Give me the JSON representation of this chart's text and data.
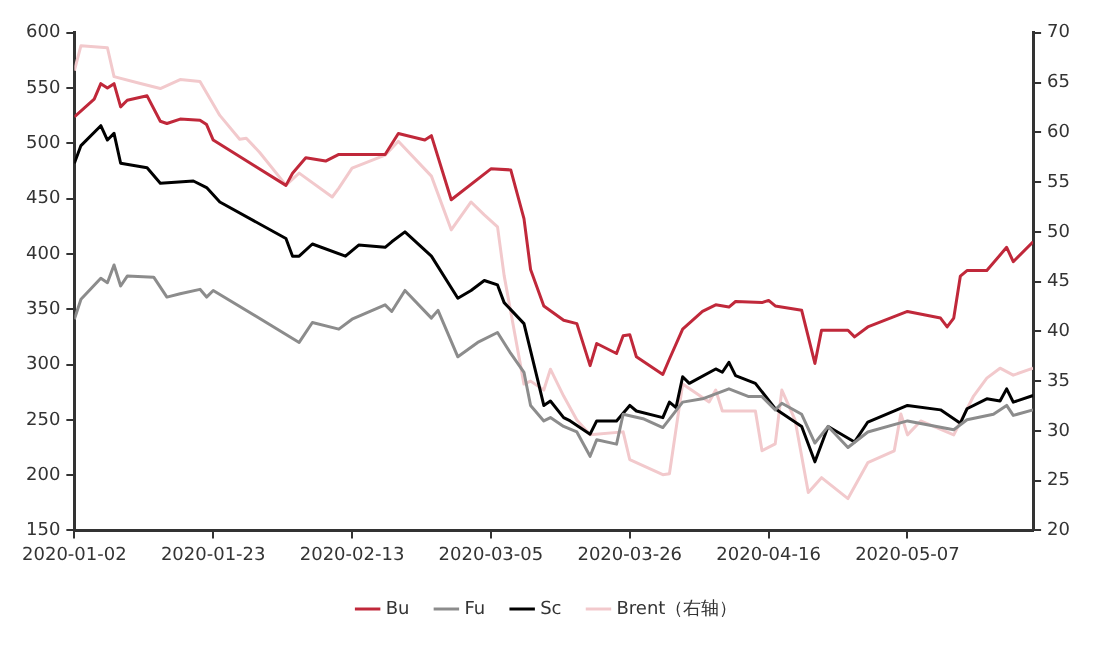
{
  "chart_data": {
    "type": "line",
    "xlim": [
      "2020-01-02",
      "2020-05-26"
    ],
    "xticks": [
      "2020-01-02",
      "2020-01-23",
      "2020-02-13",
      "2020-03-05",
      "2020-03-26",
      "2020-04-16",
      "2020-05-07"
    ],
    "ylim": [
      150,
      600
    ],
    "yticks": [
      150,
      200,
      250,
      300,
      350,
      400,
      450,
      500,
      550,
      600
    ],
    "y2lim": [
      20,
      70
    ],
    "y2ticks": [
      20,
      25,
      30,
      35,
      40,
      45,
      50,
      55,
      60,
      65,
      70
    ],
    "legend": "bottom",
    "series": [
      {
        "name": "Bu",
        "color": "#c0283a",
        "x": [
          "2020-01-02",
          "2020-01-05",
          "2020-01-06",
          "2020-01-07",
          "2020-01-08",
          "2020-01-09",
          "2020-01-10",
          "2020-01-13",
          "2020-01-15",
          "2020-01-16",
          "2020-01-18",
          "2020-01-21",
          "2020-01-22",
          "2020-01-23",
          "2020-02-03",
          "2020-02-04",
          "2020-02-06",
          "2020-02-09",
          "2020-02-11",
          "2020-02-18",
          "2020-02-20",
          "2020-02-24",
          "2020-02-25",
          "2020-02-28",
          "2020-03-05",
          "2020-03-08",
          "2020-03-10",
          "2020-03-11",
          "2020-03-13",
          "2020-03-16",
          "2020-03-18",
          "2020-03-20",
          "2020-03-21",
          "2020-03-24",
          "2020-03-25",
          "2020-03-26",
          "2020-03-27",
          "2020-03-31",
          "2020-04-01",
          "2020-04-03",
          "2020-04-06",
          "2020-04-08",
          "2020-04-10",
          "2020-04-11",
          "2020-04-15",
          "2020-04-16",
          "2020-04-17",
          "2020-04-21",
          "2020-04-23",
          "2020-04-24",
          "2020-04-28",
          "2020-04-29",
          "2020-05-01",
          "2020-05-07",
          "2020-05-12",
          "2020-05-13",
          "2020-05-14",
          "2020-05-15",
          "2020-05-16",
          "2020-05-19",
          "2020-05-22",
          "2020-05-23",
          "2020-05-26"
        ],
        "values": [
          524,
          540,
          554,
          550,
          554,
          533,
          539,
          543,
          520,
          518,
          522,
          521,
          517,
          503,
          462,
          473,
          487,
          484,
          490,
          490,
          509,
          503,
          507,
          449,
          477,
          476,
          432,
          386,
          353,
          340,
          337,
          299,
          319,
          310,
          326,
          327,
          307,
          291,
          305,
          332,
          348,
          354,
          352,
          357,
          356,
          358,
          353,
          349,
          301,
          331,
          331,
          325,
          334,
          348,
          342,
          334,
          342,
          380,
          385,
          385,
          406,
          393,
          411
        ]
      },
      {
        "name": "Fu",
        "color": "#8c8c8c",
        "x": [
          "2020-01-02",
          "2020-01-03",
          "2020-01-06",
          "2020-01-07",
          "2020-01-08",
          "2020-01-09",
          "2020-01-10",
          "2020-01-14",
          "2020-01-16",
          "2020-01-18",
          "2020-01-21",
          "2020-01-22",
          "2020-01-23",
          "2020-02-05",
          "2020-02-07",
          "2020-02-11",
          "2020-02-13",
          "2020-02-18",
          "2020-02-19",
          "2020-02-21",
          "2020-02-25",
          "2020-02-26",
          "2020-02-29",
          "2020-03-03",
          "2020-03-06",
          "2020-03-08",
          "2020-03-10",
          "2020-03-11",
          "2020-03-13",
          "2020-03-14",
          "2020-03-16",
          "2020-03-18",
          "2020-03-20",
          "2020-03-21",
          "2020-03-24",
          "2020-03-25",
          "2020-03-28",
          "2020-03-31",
          "2020-04-03",
          "2020-04-06",
          "2020-04-10",
          "2020-04-13",
          "2020-04-15",
          "2020-04-17",
          "2020-04-18",
          "2020-04-21",
          "2020-04-23",
          "2020-04-25",
          "2020-04-28",
          "2020-05-01",
          "2020-05-07",
          "2020-05-14",
          "2020-05-16",
          "2020-05-20",
          "2020-05-22",
          "2020-05-23",
          "2020-05-26"
        ],
        "values": [
          341,
          359,
          378,
          374,
          390,
          371,
          380,
          379,
          361,
          364,
          368,
          361,
          367,
          320,
          338,
          332,
          341,
          354,
          348,
          367,
          342,
          349,
          307,
          320,
          329,
          310,
          293,
          263,
          249,
          252,
          244,
          239,
          217,
          232,
          228,
          255,
          251,
          243,
          266,
          269,
          278,
          271,
          271,
          259,
          265,
          255,
          229,
          244,
          225,
          239,
          249,
          241,
          250,
          255,
          263,
          254,
          259
        ]
      },
      {
        "name": "Sc",
        "color": "#000000",
        "x": [
          "2020-01-02",
          "2020-01-03",
          "2020-01-06",
          "2020-01-07",
          "2020-01-08",
          "2020-01-09",
          "2020-01-13",
          "2020-01-15",
          "2020-01-20",
          "2020-01-22",
          "2020-01-24",
          "2020-02-03",
          "2020-02-04",
          "2020-02-05",
          "2020-02-07",
          "2020-02-12",
          "2020-02-14",
          "2020-02-18",
          "2020-02-19",
          "2020-02-21",
          "2020-02-25",
          "2020-02-29",
          "2020-03-02",
          "2020-03-04",
          "2020-03-06",
          "2020-03-07",
          "2020-03-10",
          "2020-03-12",
          "2020-03-13",
          "2020-03-14",
          "2020-03-16",
          "2020-03-17",
          "2020-03-20",
          "2020-03-21",
          "2020-03-24",
          "2020-03-26",
          "2020-03-27",
          "2020-03-31",
          "2020-04-01",
          "2020-04-02",
          "2020-04-03",
          "2020-04-04",
          "2020-04-08",
          "2020-04-09",
          "2020-04-10",
          "2020-04-11",
          "2020-04-14",
          "2020-04-17",
          "2020-04-21",
          "2020-04-23",
          "2020-04-25",
          "2020-04-29",
          "2020-05-01",
          "2020-05-07",
          "2020-05-12",
          "2020-05-15",
          "2020-05-16",
          "2020-05-19",
          "2020-05-21",
          "2020-05-22",
          "2020-05-23",
          "2020-05-26"
        ],
        "values": [
          482,
          498,
          516,
          503,
          509,
          482,
          478,
          464,
          466,
          460,
          447,
          414,
          398,
          398,
          409,
          398,
          408,
          406,
          411,
          420,
          398,
          360,
          367,
          376,
          372,
          356,
          337,
          288,
          263,
          267,
          252,
          249,
          237,
          249,
          249,
          263,
          258,
          252,
          266,
          261,
          289,
          283,
          296,
          293,
          302,
          290,
          283,
          260,
          244,
          212,
          244,
          230,
          248,
          263,
          259,
          247,
          260,
          269,
          267,
          278,
          266,
          272
        ]
      },
      {
        "name": "Brent（右轴）",
        "color": "#f2c9cc",
        "axis": "y2",
        "x": [
          "2020-01-02",
          "2020-01-03",
          "2020-01-07",
          "2020-01-08",
          "2020-01-12",
          "2020-01-15",
          "2020-01-18",
          "2020-01-21",
          "2020-01-24",
          "2020-01-27",
          "2020-01-28",
          "2020-01-30",
          "2020-02-03",
          "2020-02-05",
          "2020-02-10",
          "2020-02-11",
          "2020-02-13",
          "2020-02-18",
          "2020-02-20",
          "2020-02-25",
          "2020-02-28",
          "2020-03-02",
          "2020-03-04",
          "2020-03-06",
          "2020-03-07",
          "2020-03-10",
          "2020-03-11",
          "2020-03-13",
          "2020-03-14",
          "2020-03-16",
          "2020-03-18",
          "2020-03-20",
          "2020-03-25",
          "2020-03-26",
          "2020-03-31",
          "2020-04-01",
          "2020-04-03",
          "2020-04-07",
          "2020-04-08",
          "2020-04-09",
          "2020-04-14",
          "2020-04-15",
          "2020-04-17",
          "2020-04-18",
          "2020-04-20",
          "2020-04-22",
          "2020-04-24",
          "2020-04-28",
          "2020-05-01",
          "2020-05-05",
          "2020-05-06",
          "2020-05-07",
          "2020-05-09",
          "2020-05-14",
          "2020-05-17",
          "2020-05-19",
          "2020-05-21",
          "2020-05-23",
          "2020-05-26"
        ],
        "values": [
          66.2,
          68.7,
          68.5,
          65.6,
          64.9,
          64.4,
          65.3,
          65.1,
          61.7,
          59.3,
          59.4,
          58.0,
          54.7,
          55.9,
          53.5,
          54.4,
          56.4,
          57.7,
          59.1,
          55.6,
          50.2,
          53.0,
          51.7,
          50.5,
          45.6,
          34.7,
          35.0,
          34.1,
          36.2,
          33.5,
          31.1,
          29.6,
          29.9,
          27.1,
          25.6,
          25.7,
          34.7,
          32.9,
          34.1,
          32.0,
          32.0,
          28.0,
          28.7,
          34.1,
          31.1,
          23.8,
          25.3,
          23.2,
          26.8,
          28.0,
          31.7,
          29.6,
          31.0,
          29.6,
          33.5,
          35.3,
          36.3,
          35.6,
          36.3
        ]
      }
    ]
  }
}
